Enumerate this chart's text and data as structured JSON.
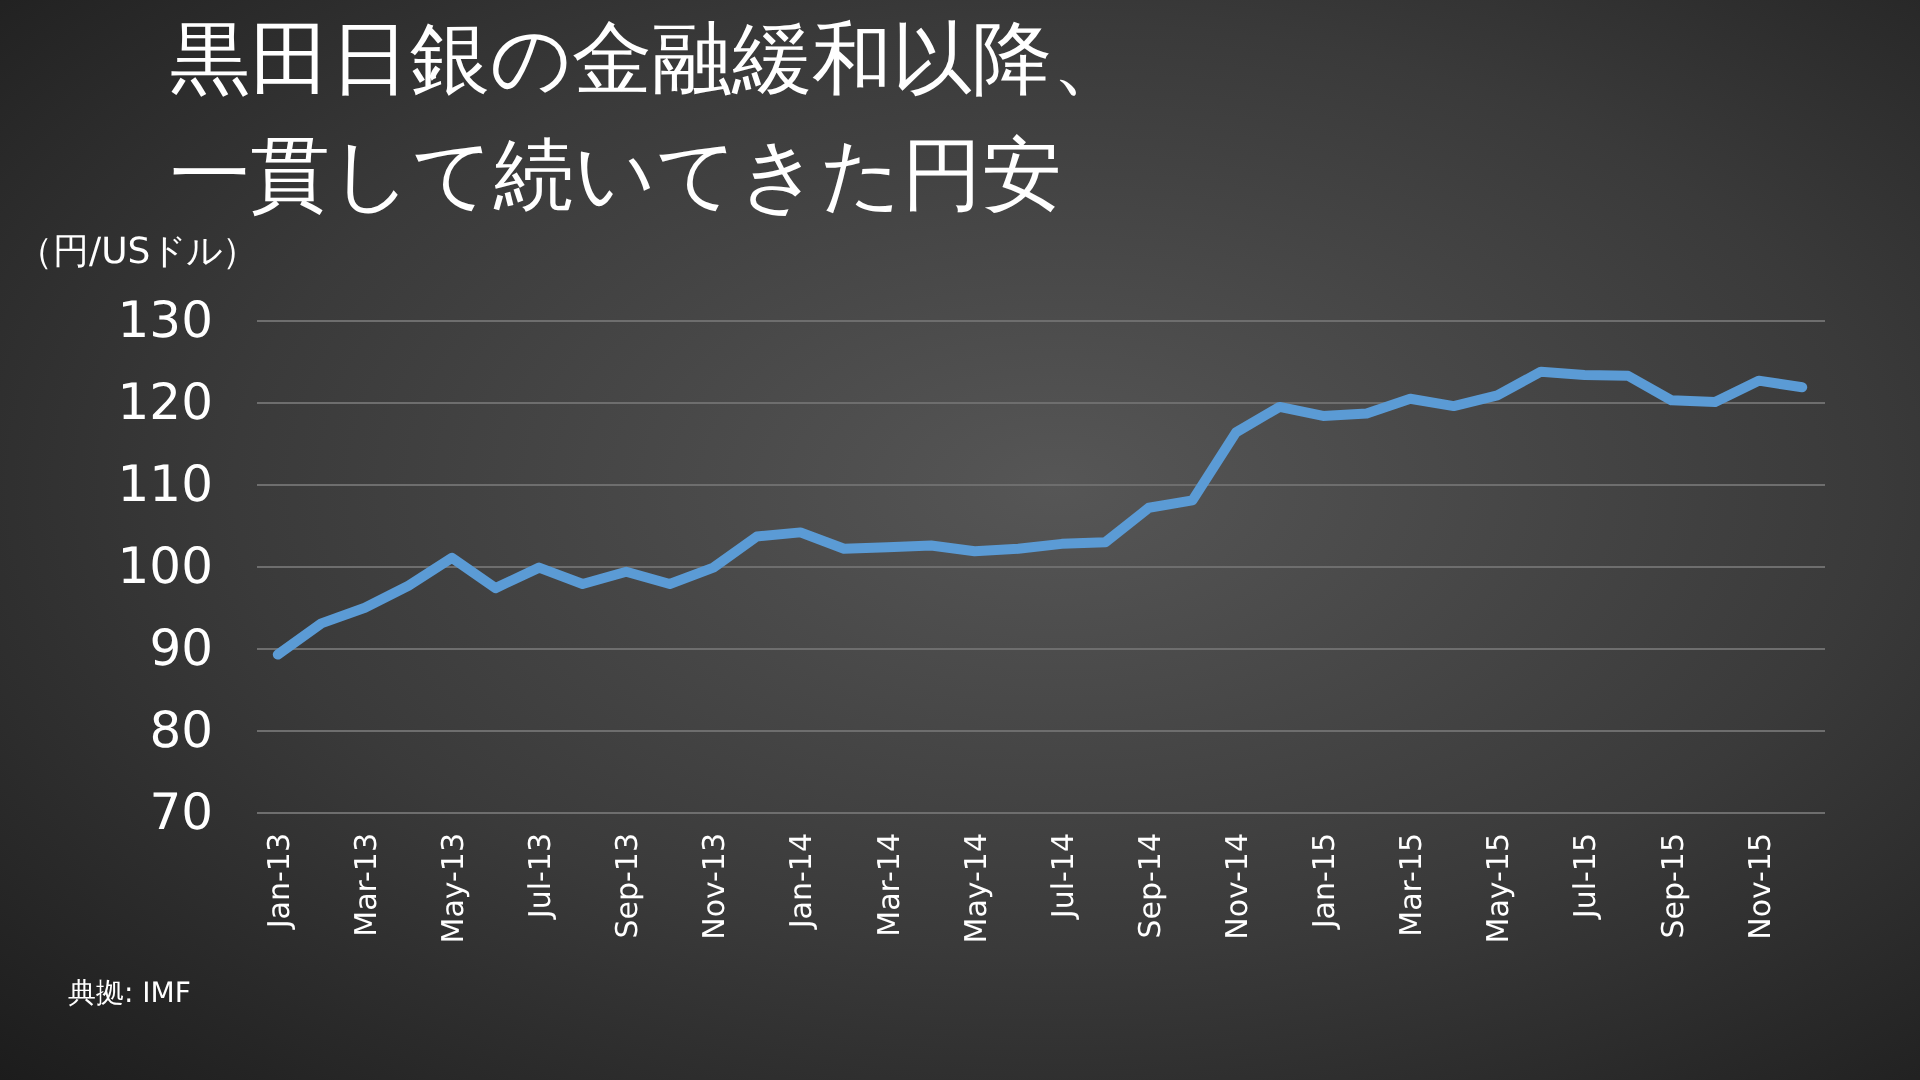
{
  "chart_data": {
    "type": "line",
    "title": "黒田日銀の金融緩和以降、一貫して続いてきた円安",
    "ylabel": "（円/USドル）",
    "annotations": [
      "典拠: IMF"
    ],
    "categories": [
      "Jan-13",
      null,
      "Mar-13",
      null,
      "May-13",
      null,
      "Jul-13",
      null,
      "Sep-13",
      null,
      "Nov-13",
      null,
      "Jan-14",
      null,
      "Mar-14",
      null,
      "May-14",
      null,
      "Jul-14",
      null,
      "Sep-14",
      null,
      "Nov-14",
      null,
      "Jan-15",
      null,
      "Mar-15",
      null,
      "May-15",
      null,
      "Jul-15",
      null,
      "Sep-15",
      null,
      "Nov-15",
      null
    ],
    "series": [
      {
        "color": "#5b9bd5",
        "values": [
          89.2,
          93.0,
          94.9,
          97.6,
          101.0,
          97.3,
          99.8,
          97.8,
          99.3,
          97.8,
          99.8,
          103.6,
          104.1,
          102.1,
          102.3,
          102.5,
          101.8,
          102.1,
          102.7,
          102.9,
          107.1,
          108.0,
          116.3,
          119.4,
          118.3,
          118.6,
          120.4,
          119.5,
          120.8,
          123.7,
          123.3,
          123.2,
          120.2,
          120.0,
          122.6,
          121.8
        ]
      }
    ],
    "ylim": [
      70,
      130
    ],
    "yticks": [
      70,
      80,
      90,
      100,
      110,
      120,
      130
    ],
    "grid": "y"
  }
}
